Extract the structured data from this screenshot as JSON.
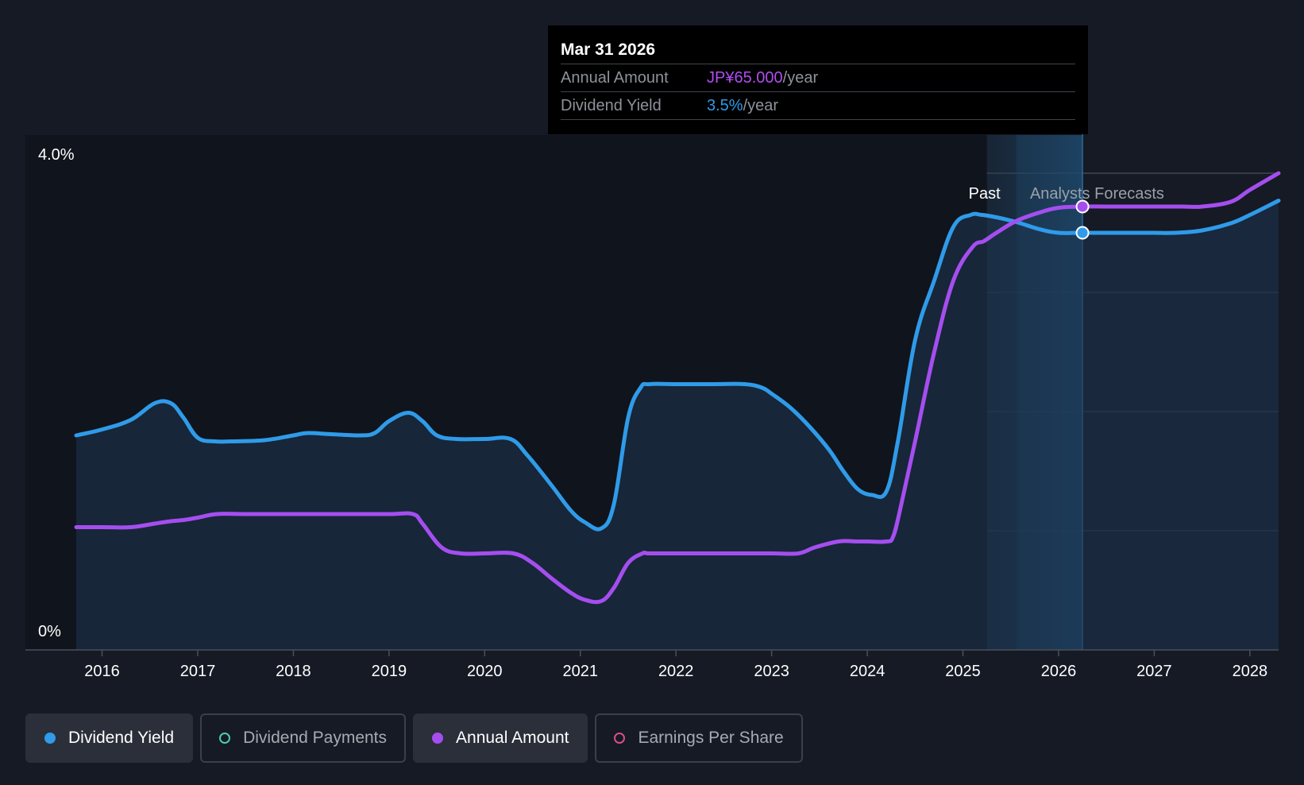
{
  "tooltip": {
    "date": "Mar 31 2026",
    "annual_amount_label": "Annual Amount",
    "annual_amount_value": "JP¥65.000",
    "annual_amount_unit": "/year",
    "dividend_yield_label": "Dividend Yield",
    "dividend_yield_value": "3.5%",
    "dividend_yield_unit": "/year"
  },
  "chart_data": {
    "type": "area",
    "y_tick_labels": {
      "top": "4.0%",
      "bottom": "0%"
    },
    "ylim": [
      0,
      4.0
    ],
    "x_tick_labels": [
      "2016",
      "2017",
      "2018",
      "2019",
      "2020",
      "2021",
      "2022",
      "2023",
      "2024",
      "2025",
      "2026",
      "2027",
      "2028"
    ],
    "xlim": [
      2015.8,
      2028.3
    ],
    "past_label": "Past",
    "forecast_label": "Analysts Forecasts",
    "past_end": 2025.25,
    "forecast_start": 2025.56,
    "selected_x": 2026.25,
    "series": [
      {
        "name": "Dividend Yield",
        "color": "#2f9be9",
        "unit": "%",
        "filled": true,
        "x": [
          2015.73,
          2016.0,
          2016.3,
          2016.55,
          2016.72,
          2016.85,
          2017.0,
          2017.18,
          2017.35,
          2017.7,
          2018.0,
          2018.15,
          2018.4,
          2018.7,
          2018.85,
          2019.0,
          2019.2,
          2019.35,
          2019.5,
          2019.7,
          2020.0,
          2020.27,
          2020.45,
          2020.7,
          2020.9,
          2021.05,
          2021.22,
          2021.35,
          2021.5,
          2021.63,
          2021.72,
          2022.0,
          2022.4,
          2022.72,
          2022.9,
          2023.0,
          2023.2,
          2023.4,
          2023.6,
          2023.75,
          2023.9,
          2024.05,
          2024.2,
          2024.32,
          2024.5,
          2024.7,
          2024.9,
          2025.08,
          2025.2,
          2025.35,
          2025.56,
          2025.8,
          2026.0,
          2026.25,
          2026.5,
          2026.8,
          2027.0,
          2027.22,
          2027.5,
          2027.8,
          2028.0,
          2028.3
        ],
        "values": [
          1.8,
          1.85,
          1.93,
          2.07,
          2.07,
          1.95,
          1.78,
          1.75,
          1.75,
          1.76,
          1.8,
          1.82,
          1.81,
          1.8,
          1.82,
          1.92,
          1.99,
          1.92,
          1.8,
          1.77,
          1.77,
          1.77,
          1.63,
          1.38,
          1.17,
          1.07,
          1.02,
          1.22,
          1.95,
          2.2,
          2.23,
          2.23,
          2.23,
          2.23,
          2.2,
          2.15,
          2.03,
          1.87,
          1.68,
          1.5,
          1.35,
          1.3,
          1.33,
          1.75,
          2.6,
          3.1,
          3.55,
          3.65,
          3.65,
          3.63,
          3.59,
          3.53,
          3.5,
          3.5,
          3.5,
          3.5,
          3.5,
          3.5,
          3.52,
          3.58,
          3.65,
          3.77
        ]
      },
      {
        "name": "Annual Amount",
        "color": "#a54ef0",
        "unit": "JP¥",
        "filled": false,
        "x": [
          2015.73,
          2016.0,
          2016.3,
          2016.55,
          2016.72,
          2016.85,
          2017.0,
          2017.2,
          2017.5,
          2018.0,
          2018.5,
          2019.0,
          2019.25,
          2019.35,
          2019.55,
          2019.75,
          2020.0,
          2020.3,
          2020.5,
          2020.7,
          2020.9,
          2021.05,
          2021.22,
          2021.35,
          2021.5,
          2021.65,
          2021.72,
          2022.0,
          2022.5,
          2023.0,
          2023.28,
          2023.45,
          2023.7,
          2023.9,
          2024.0,
          2024.2,
          2024.27,
          2024.35,
          2024.5,
          2024.7,
          2024.9,
          2025.1,
          2025.22,
          2025.35,
          2025.56,
          2025.8,
          2026.0,
          2026.25,
          2026.5,
          2026.8,
          2027.0,
          2027.3,
          2027.5,
          2027.8,
          2028.0,
          2028.3
        ],
        "values": [
          1.03,
          1.03,
          1.03,
          1.06,
          1.08,
          1.09,
          1.11,
          1.14,
          1.14,
          1.14,
          1.14,
          1.14,
          1.14,
          1.06,
          0.86,
          0.81,
          0.81,
          0.81,
          0.73,
          0.6,
          0.48,
          0.42,
          0.41,
          0.52,
          0.73,
          0.81,
          0.81,
          0.81,
          0.81,
          0.81,
          0.81,
          0.86,
          0.91,
          0.91,
          0.91,
          0.91,
          0.95,
          1.2,
          1.75,
          2.5,
          3.1,
          3.38,
          3.43,
          3.5,
          3.6,
          3.67,
          3.71,
          3.72,
          3.72,
          3.72,
          3.72,
          3.72,
          3.72,
          3.76,
          3.86,
          4.0
        ]
      }
    ],
    "markers": [
      {
        "series": "Annual Amount",
        "x": 2026.25,
        "y": 3.72,
        "color": "#a54ef0"
      },
      {
        "series": "Dividend Yield",
        "x": 2026.25,
        "y": 3.5,
        "color": "#2f9be9"
      }
    ]
  },
  "legend": [
    {
      "label": "Dividend Yield",
      "color": "#2f9be9",
      "filled": true,
      "active": true
    },
    {
      "label": "Dividend Payments",
      "color": "#4fc9b4",
      "filled": false,
      "active": false
    },
    {
      "label": "Annual Amount",
      "color": "#a54ef0",
      "filled": true,
      "active": true
    },
    {
      "label": "Earnings Per Share",
      "color": "#d84d8c",
      "filled": false,
      "active": false
    }
  ]
}
